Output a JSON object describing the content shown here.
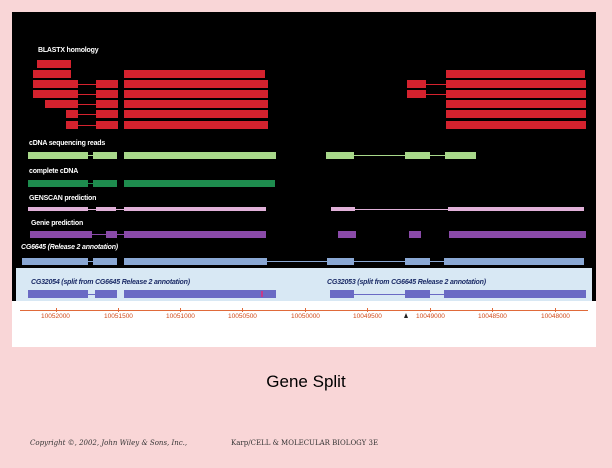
{
  "figure": {
    "tracks": {
      "blastx": "BLASTX homology",
      "cdna_reads": "cDNA sequencing reads",
      "complete_cdna": "complete cDNA",
      "genscan": "GENSCAN prediction",
      "genie": "Genie prediction",
      "release2": "CG6645 (Release 2 annotation)"
    },
    "annotations": {
      "left": "CG32054 (split from CG6645 Release 2 annotation)",
      "right": "CG32053 (split from CG6645 Release 2 annotation)"
    },
    "scale_ticks": [
      "10052000",
      "10051500",
      "10051000",
      "10050500",
      "10050000",
      "10049500",
      "10049000",
      "10048500",
      "10048000"
    ]
  },
  "colors": {
    "blastx": "#d4222e",
    "cdna_reads": "#a8d88a",
    "complete_cdna": "#1e8c4e",
    "genscan": "#e0b0d8",
    "genie": "#8a4aa8",
    "release2": "#8aa8d4",
    "split": "#6a6ac4"
  },
  "caption": "Gene Split",
  "footer": {
    "copyright": "Copyright ©, 2002, John Wiley & Sons, Inc.,",
    "book": "Karp/CELL & MOLECULAR BIOLOGY 3E"
  }
}
